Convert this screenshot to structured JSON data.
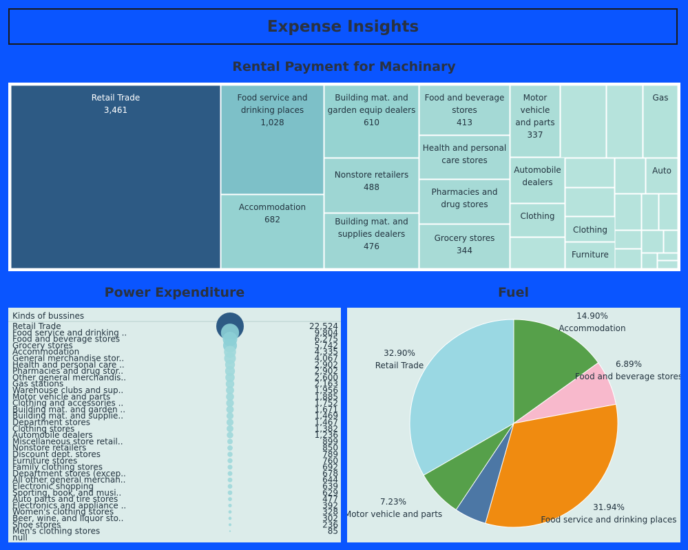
{
  "header": {
    "title": "Expense Insights"
  },
  "sections": {
    "rental": "Rental Payment for Machinary",
    "power": "Power Expenditure",
    "fuel": "Fuel"
  },
  "colors": {
    "background": "#0a55ff",
    "treemap_dark": "#2d5a84",
    "treemap_mid": "#7dc0c8",
    "treemap_light": "#a8dbd6",
    "pie_green": "#56a04a",
    "pie_pink": "#f8b9cc",
    "pie_orange": "#f08b10",
    "pie_blue": "#4c77a5",
    "pie_lightblue": "#9ad8e3"
  },
  "chart_data": [
    {
      "type": "treemap",
      "title": "Rental Payment for Machinary",
      "items": [
        {
          "label": "Retail Trade",
          "value": 3461
        },
        {
          "label": "Food service and drinking places",
          "value": 1028
        },
        {
          "label": "Accommodation",
          "value": 682
        },
        {
          "label": "Building mat. and garden equip dealers",
          "value": 610
        },
        {
          "label": "Nonstore retailers",
          "value": 488
        },
        {
          "label": "Building mat. and supplies dealers",
          "value": 476
        },
        {
          "label": "Food and beverage stores",
          "value": 413
        },
        {
          "label": "Grocery stores",
          "value": 344
        },
        {
          "label": "Motor vehicle and parts",
          "value": 337
        },
        {
          "label": "Health and personal care stores",
          "value": null
        },
        {
          "label": "Pharmacies and drug stores",
          "value": null
        },
        {
          "label": "Automobile dealers",
          "value": null
        },
        {
          "label": "Clothing",
          "value": null
        },
        {
          "label": "Clothing",
          "value": null
        },
        {
          "label": "Furniture",
          "value": null
        },
        {
          "label": "Gas",
          "value": null
        },
        {
          "label": "Auto",
          "value": null
        }
      ]
    },
    {
      "type": "bubble-list",
      "title": "Power Expenditure",
      "column_header": "Kinds of bussines",
      "categories": [
        "Retail Trade",
        "Food service and drinking ..",
        "Food and beverage stores",
        "Grocery stores",
        "Accommodation",
        "General merchandise stor..",
        "Health and personal care ..",
        "Pharmacies and drug stor..",
        "Other general merchandis..",
        "Gas stations",
        "Warehouse clubs and sup..",
        "Motor vehicle and parts",
        "Clothing and accessories ..",
        "Building mat. and garden ..",
        "Building mat. and supplie..",
        "Department stores",
        "Clothing stores",
        "Automobile dealers",
        "Miscellaneous store retail..",
        "Nonstore retailers",
        "Discount dept. stores",
        "Furniture stores",
        "Family clothing stores",
        "Department stores (excep..",
        "All other general merchan..",
        "Electronic shopping",
        "Sporting, book, and musi..",
        "Auto parts and tire stores",
        "Electronics and appliance ..",
        "Women's clothing stores",
        "Beer, wine, and liquor sto..",
        "Shoe stores",
        "Men's clothing stores",
        "null"
      ],
      "values": [
        22524,
        9804,
        6275,
        5742,
        4335,
        4067,
        2902,
        2902,
        2600,
        2163,
        1956,
        1885,
        1752,
        1671,
        1469,
        1467,
        1382,
        1236,
        899,
        850,
        789,
        760,
        692,
        678,
        644,
        639,
        629,
        477,
        392,
        328,
        302,
        236,
        85,
        null
      ],
      "value_labels": [
        "22,524",
        "9,804",
        "6,275",
        "5,742",
        "4,335",
        "4,067",
        "2,902",
        "2,902",
        "2,600",
        "2,163",
        "1,956",
        "1,885",
        "1,752",
        "1,671",
        "1,469",
        "1,467",
        "1,382",
        "1,236",
        "899",
        "850",
        "789",
        "760",
        "692",
        "678",
        "644",
        "639",
        "629",
        "477",
        "392",
        "328",
        "302",
        "236",
        "85",
        ""
      ]
    },
    {
      "type": "pie",
      "title": "Fuel",
      "slices": [
        {
          "label": "Accommodation",
          "value": 14.9,
          "pct_label": "14.90%",
          "color": "#56a04a"
        },
        {
          "label": "Food and beverage stores",
          "value": 6.89,
          "pct_label": "6.89%",
          "color": "#f8b9cc"
        },
        {
          "label": "Food service and drinking places",
          "value": 31.94,
          "pct_label": "31.94%",
          "color": "#f08b10"
        },
        {
          "label": "",
          "value": 4.9,
          "pct_label": "",
          "color": "#4c77a5"
        },
        {
          "label": "Motor vehicle and parts",
          "value": 7.23,
          "pct_label": "7.23%",
          "color": "#56a04a"
        },
        {
          "label": "Retail Trade",
          "value": 32.9,
          "pct_label": "32.90%",
          "color": "#9ad8e3"
        }
      ]
    }
  ]
}
